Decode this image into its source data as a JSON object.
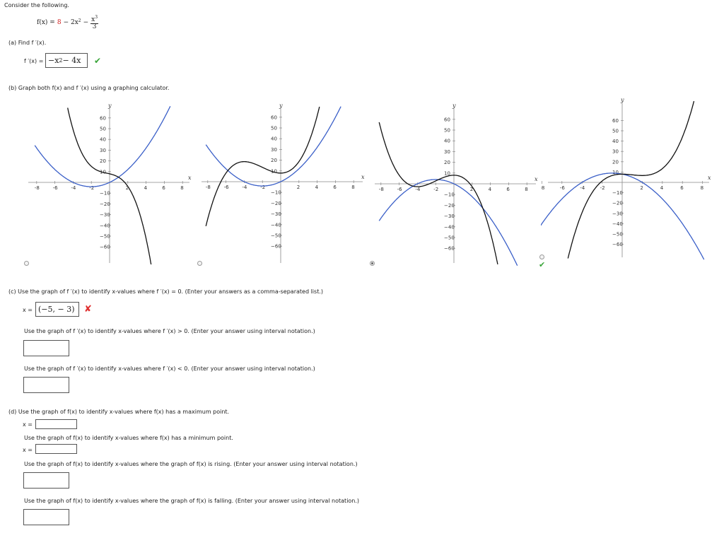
{
  "intro": "Consider the following.",
  "function": {
    "lhs": "f(x) = ",
    "c": "8",
    "rest": "− 2x",
    "sq": "2",
    "minus": "−",
    "num": "x",
    "num_exp": "3",
    "den": "3"
  },
  "part_a": {
    "label": "(a)  Find f ′(x).",
    "answer_label": "f ′(x) =",
    "answer_main": "−x",
    "answer_exp": "2",
    "answer_tail": " − 4x"
  },
  "part_b": {
    "label": "(b)  Graph both f(x) and f ′(x) using a graphing calculator."
  },
  "graphs": {
    "x_ticks": [
      "-8",
      "-6",
      "-4",
      "-2",
      "2",
      "4",
      "6",
      "8"
    ],
    "y_ticks": [
      "60",
      "50",
      "40",
      "30",
      "20",
      "10",
      "−10",
      "−20",
      "−30",
      "−40",
      "−50",
      "−60"
    ],
    "x_axis_label": "x",
    "y_axis_label": "y",
    "selected_index": 2,
    "correct_index": 3,
    "colors": {
      "f": "#111111",
      "fprime": "#3a5fc8"
    }
  },
  "part_c": {
    "label": "(c)  Use the graph of f ′(x) to identify x-values where f ′(x) = 0. (Enter your answers as a comma-separated list.)",
    "answer_prefix": "x =",
    "answer_value": "(−5, − 3)",
    "q2": "Use the graph of f ′(x) to identify x-values where f ′(x) > 0. (Enter your answer using interval notation.)",
    "q3": "Use the graph of f ′(x) to identify x-values where f ′(x) < 0. (Enter your answer using interval notation.)"
  },
  "part_d": {
    "label": "(d)  Use the graph of f(x) to identify x-values where f(x) has a maximum point.",
    "x_prefix": "x =",
    "q2": "Use the graph of f(x) to identify x-values where f(x) has a minimum point.",
    "q3": "Use the graph of f(x) to identify x-values where the graph of f(x) is rising. (Enter your answer using interval notation.)",
    "q4": "Use the graph of f(x) to identify x-values where the graph of f(x) is falling. (Enter your answer using interval notation.)"
  }
}
